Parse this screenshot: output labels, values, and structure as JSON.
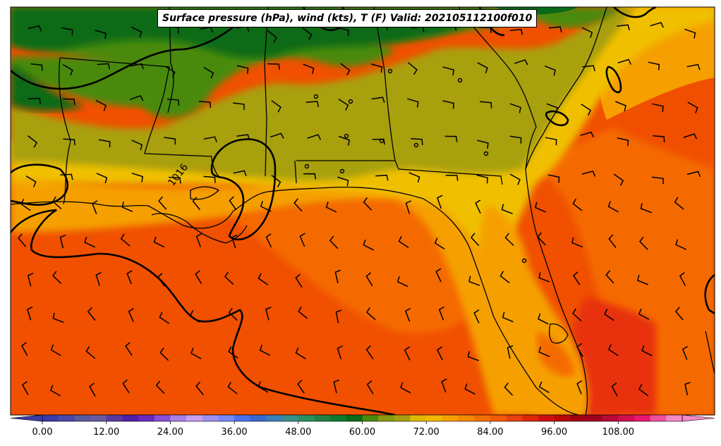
{
  "title": "Surface pressure (hPa), wind (kts), T (F) Valid: 202105112100f010",
  "isobar_label": "1016",
  "colorbar": {
    "tick_labels": [
      "0.00",
      "12.00",
      "24.00",
      "36.00",
      "48.00",
      "60.00",
      "72.00",
      "84.00",
      "96.00",
      "108.00"
    ],
    "colors": [
      "#3a3aa8",
      "#4848a8",
      "#5a5aa0",
      "#6a5aa0",
      "#5a3aa0",
      "#5020a8",
      "#6a28c0",
      "#8a50d8",
      "#a880e8",
      "#c8a0f0",
      "#a090f0",
      "#7888f8",
      "#4a70f0",
      "#3868d0",
      "#3a80b8",
      "#38908a",
      "#2a9060",
      "#228048",
      "#107a30",
      "#0a6a18",
      "#4a8a10",
      "#8a9a10",
      "#a8a010",
      "#e0b800",
      "#f0b800",
      "#f5a000",
      "#f58a00",
      "#f57000",
      "#f55a00",
      "#e84010",
      "#dc2808",
      "#cc1010",
      "#b80808",
      "#a00010",
      "#a00020",
      "#b80838",
      "#d01050",
      "#e81870",
      "#f050a0",
      "#f888c8"
    ]
  },
  "legend_colors": {
    "dark_green": "#0a6a18",
    "green": "#4a8a10",
    "olive": "#a8a010",
    "yellow": "#f0c000",
    "orange": "#f5a000",
    "deep_orange": "#f56a00",
    "red_orange": "#f05000",
    "red": "#e83010"
  }
}
